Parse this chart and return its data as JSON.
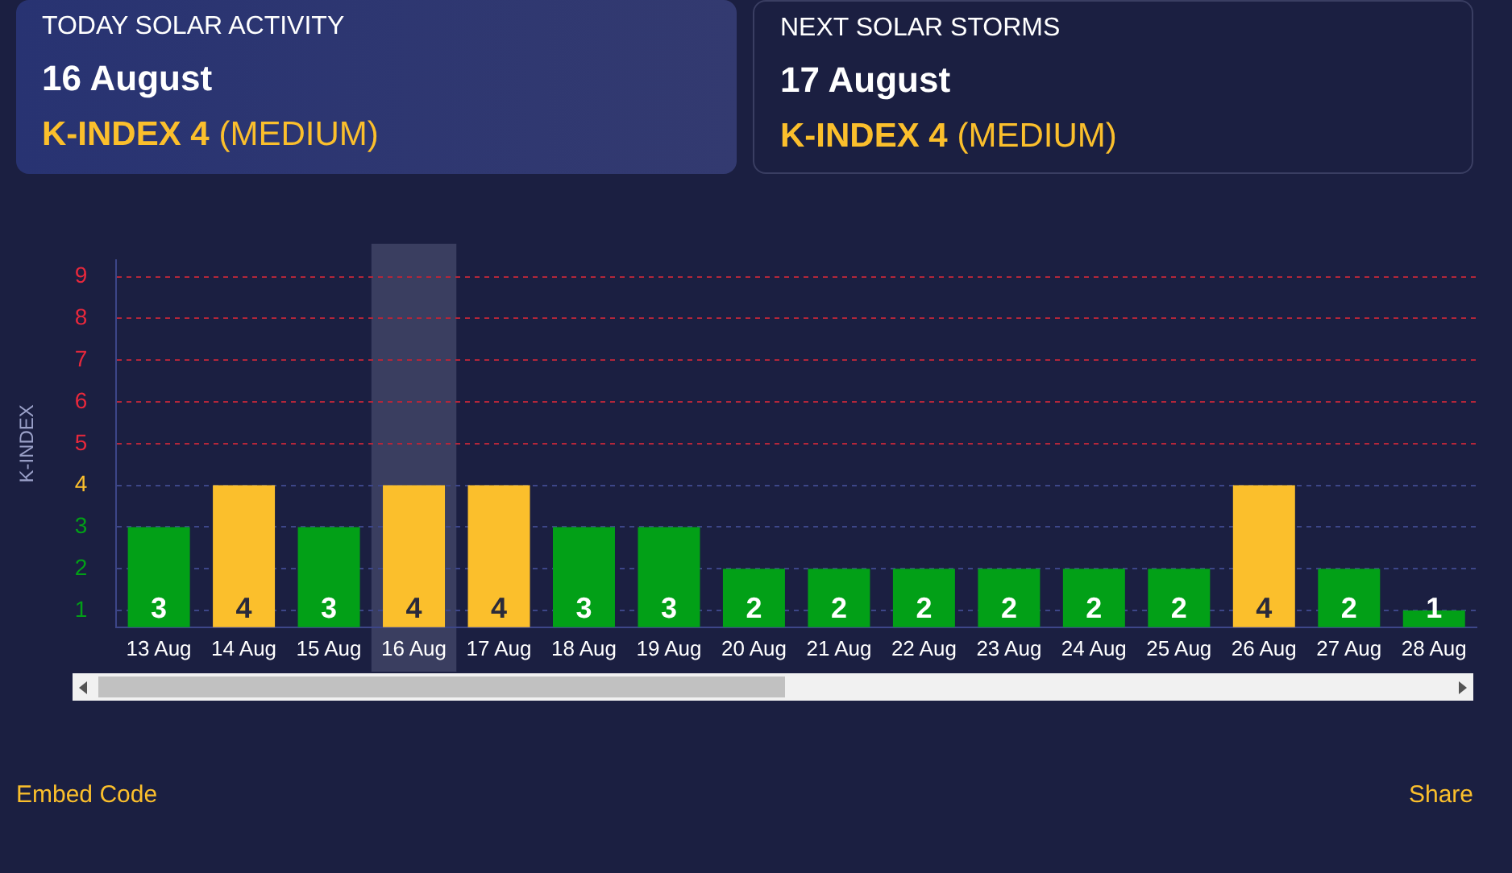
{
  "chart_data": {
    "type": "bar",
    "ylabel": "K-INDEX",
    "categories": [
      "13 Aug",
      "14 Aug",
      "15 Aug",
      "16 Aug",
      "17 Aug",
      "18 Aug",
      "19 Aug",
      "20 Aug",
      "21 Aug",
      "22 Aug",
      "23 Aug",
      "24 Aug",
      "25 Aug",
      "26 Aug",
      "27 Aug",
      "28 Aug"
    ],
    "values": [
      3,
      4,
      3,
      4,
      4,
      3,
      3,
      2,
      2,
      2,
      2,
      2,
      2,
      4,
      2,
      1
    ],
    "colors": [
      "#02a017",
      "#fbbf2c",
      "#02a017",
      "#fbbf2c",
      "#fbbf2c",
      "#02a017",
      "#02a017",
      "#02a017",
      "#02a017",
      "#02a017",
      "#02a017",
      "#02a017",
      "#02a017",
      "#fbbf2c",
      "#02a017",
      "#02a017"
    ],
    "ylim": [
      0.6,
      9.4
    ],
    "yticks": [
      1,
      2,
      3,
      4,
      5,
      6,
      7,
      8,
      9
    ],
    "grid": "y",
    "line_style": "dashed",
    "data_labels": true,
    "bands": [
      {
        "axis": "x",
        "from": "16 Aug",
        "to": "16 Aug",
        "color": "#3a3e60"
      }
    ],
    "annotations": [
      "TODAY SOLAR ACTIVITY",
      "16 August",
      "K-INDEX 4",
      "(MEDIUM)",
      "NEXT SOLAR STORMS",
      "17 August",
      "K-INDEX 4",
      "(MEDIUM)",
      "Embed Code",
      "Share"
    ]
  }
}
